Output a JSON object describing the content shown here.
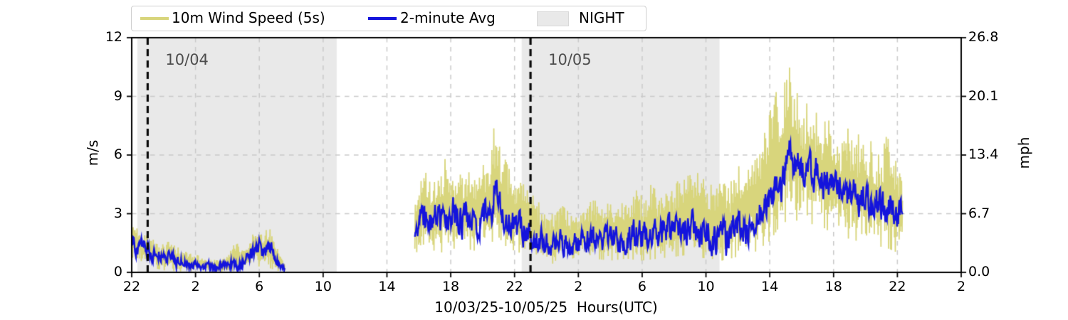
{
  "figure": {
    "background": "#ffffff"
  },
  "legend": {
    "items": [
      {
        "label": "10m Wind Speed (5s)",
        "swatch": "line",
        "color": "#d8d57c"
      },
      {
        "label": "2-minute Avg",
        "swatch": "line",
        "color": "#1414dc"
      },
      {
        "label": "NIGHT",
        "swatch": "patch",
        "color": "#e9e9e9"
      }
    ]
  },
  "chart_data": {
    "type": "line",
    "title": "",
    "xlabel": "10/03/25-10/05/25  Hours(UTC)",
    "legend_position": "top",
    "grid": true,
    "x_axis": {
      "label": "10/03/25-10/05/25  Hours(UTC)",
      "start": "10/03/25 22:00 UTC",
      "range_hours": [
        0,
        52
      ],
      "tick_hours": [
        0,
        4,
        8,
        12,
        16,
        20,
        24,
        28,
        32,
        36,
        40,
        44,
        48,
        52
      ],
      "tick_labels": [
        "22",
        "2",
        "6",
        "10",
        "14",
        "18",
        "22",
        "2",
        "6",
        "10",
        "14",
        "18",
        "22",
        "2"
      ]
    },
    "y_left": {
      "label": "m/s",
      "range": [
        0,
        12
      ],
      "tick_values": [
        0,
        3,
        6,
        9,
        12
      ],
      "tick_labels": [
        "0",
        "3",
        "6",
        "9",
        "12"
      ]
    },
    "y_right": {
      "label": "mph",
      "tick_values": [
        0,
        3,
        6,
        9,
        12
      ],
      "tick_labels": [
        "0.0",
        "6.7",
        "13.4",
        "20.1",
        "26.8"
      ]
    },
    "night_color": "#e9e9e9",
    "grid_color": "#c9c9c9",
    "night_bands_hours": [
      [
        0.35,
        12.85
      ],
      [
        24.45,
        36.85
      ]
    ],
    "day_markers": [
      {
        "hour": 1.0,
        "label": "10/04"
      },
      {
        "hour": 25.0,
        "label": "10/05"
      }
    ],
    "data_segments_hours": [
      [
        0,
        9.6
      ],
      [
        17.75,
        48.35
      ]
    ],
    "series": [
      {
        "name": "10m Wind Speed (5s)",
        "color": "#d8d57c",
        "style": "raw-envelope",
        "gust_max_keyframes": [
          [
            0,
            2.7
          ],
          [
            0.5,
            2.2
          ],
          [
            1,
            2.0
          ],
          [
            1.5,
            1.7
          ],
          [
            2,
            1.5
          ],
          [
            2.5,
            1.6
          ],
          [
            3,
            1.2
          ],
          [
            3.5,
            1.1
          ],
          [
            4,
            0.9
          ],
          [
            4.5,
            0.8
          ],
          [
            5,
            0.6
          ],
          [
            5.5,
            0.7
          ],
          [
            6,
            0.8
          ],
          [
            6.5,
            1.7
          ],
          [
            7,
            1.2
          ],
          [
            7.5,
            1.9
          ],
          [
            8,
            2.1
          ],
          [
            8.7,
            2.2
          ],
          [
            9,
            1.5
          ],
          [
            9.3,
            0.9
          ],
          [
            9.6,
            0.4
          ],
          [
            17.75,
            3.8
          ],
          [
            18.1,
            4.5
          ],
          [
            18.4,
            5.8
          ],
          [
            18.8,
            4.6
          ],
          [
            19.2,
            5.2
          ],
          [
            19.6,
            5.9
          ],
          [
            20,
            4.8
          ],
          [
            20.4,
            5.3
          ],
          [
            20.8,
            4.7
          ],
          [
            21.2,
            5.6
          ],
          [
            21.6,
            4.9
          ],
          [
            22,
            5.4
          ],
          [
            22.4,
            6.3
          ],
          [
            22.85,
            7.9
          ],
          [
            23.2,
            6.2
          ],
          [
            23.6,
            5.4
          ],
          [
            24,
            4.7
          ],
          [
            24.4,
            5.1
          ],
          [
            24.8,
            4.2
          ],
          [
            25.2,
            3.9
          ],
          [
            25.6,
            3.5
          ],
          [
            26,
            3.2
          ],
          [
            26.5,
            2.9
          ],
          [
            27,
            3.4
          ],
          [
            27.5,
            3.0
          ],
          [
            28,
            3.3
          ],
          [
            28.5,
            3.5
          ],
          [
            29,
            3.7
          ],
          [
            29.5,
            3.4
          ],
          [
            30,
            3.9
          ],
          [
            30.5,
            3.6
          ],
          [
            31,
            4.0
          ],
          [
            31.5,
            4.3
          ],
          [
            32,
            3.9
          ],
          [
            32.5,
            4.5
          ],
          [
            33,
            4.1
          ],
          [
            33.5,
            4.7
          ],
          [
            34,
            4.3
          ],
          [
            34.5,
            5.1
          ],
          [
            34.9,
            5.6
          ],
          [
            35.3,
            4.9
          ],
          [
            35.7,
            5.3
          ],
          [
            36.1,
            4.7
          ],
          [
            36.5,
            4.3
          ],
          [
            37,
            5.0
          ],
          [
            37.5,
            4.5
          ],
          [
            38,
            5.5
          ],
          [
            38.4,
            5.0
          ],
          [
            38.8,
            5.9
          ],
          [
            39.2,
            6.3
          ],
          [
            39.6,
            6.9
          ],
          [
            40,
            8.1
          ],
          [
            40.4,
            10.0
          ],
          [
            40.7,
            9.0
          ],
          [
            41,
            9.9
          ],
          [
            41.2,
            11.3
          ],
          [
            41.5,
            8.8
          ],
          [
            41.8,
            9.3
          ],
          [
            42.1,
            8.2
          ],
          [
            42.4,
            8.8
          ],
          [
            42.7,
            7.8
          ],
          [
            43,
            8.3
          ],
          [
            43.3,
            7.5
          ],
          [
            43.6,
            8.7
          ],
          [
            44,
            7.2
          ],
          [
            44.4,
            6.8
          ],
          [
            44.8,
            7.6
          ],
          [
            45.2,
            6.6
          ],
          [
            45.6,
            7.1
          ],
          [
            46,
            6.2
          ],
          [
            46.4,
            6.8
          ],
          [
            46.8,
            6.0
          ],
          [
            47.1,
            6.4
          ],
          [
            47.35,
            9.4
          ],
          [
            47.6,
            6.3
          ],
          [
            48,
            5.5
          ],
          [
            48.35,
            4.4
          ]
        ],
        "gust_min_keyframes": [
          [
            0,
            0.6
          ],
          [
            1,
            0.3
          ],
          [
            2,
            0.1
          ],
          [
            3,
            0.05
          ],
          [
            4,
            0.05
          ],
          [
            5,
            0.02
          ],
          [
            6,
            0.05
          ],
          [
            7,
            0.1
          ],
          [
            7.6,
            0.3
          ],
          [
            8.4,
            0.3
          ],
          [
            9,
            0.1
          ],
          [
            9.6,
            0.02
          ],
          [
            17.75,
            1.0
          ],
          [
            18.5,
            1.2
          ],
          [
            19.5,
            1.0
          ],
          [
            20.5,
            1.3
          ],
          [
            21.5,
            1.1
          ],
          [
            22.5,
            1.5
          ],
          [
            23,
            1.8
          ],
          [
            23.5,
            1.3
          ],
          [
            24,
            1.1
          ],
          [
            25,
            0.8
          ],
          [
            26,
            0.6
          ],
          [
            26.5,
            0.4
          ],
          [
            27,
            0.6
          ],
          [
            28,
            0.5
          ],
          [
            29,
            0.7
          ],
          [
            30,
            0.6
          ],
          [
            31,
            0.7
          ],
          [
            32,
            0.6
          ],
          [
            33,
            0.7
          ],
          [
            34,
            0.8
          ],
          [
            35,
            0.9
          ],
          [
            36,
            0.7
          ],
          [
            36.5,
            0.3
          ],
          [
            37,
            0.6
          ],
          [
            38,
            0.8
          ],
          [
            39,
            1.0
          ],
          [
            39.5,
            1.3
          ],
          [
            40,
            1.6
          ],
          [
            40.5,
            2.2
          ],
          [
            41,
            2.6
          ],
          [
            41.2,
            3.2
          ],
          [
            41.6,
            2.6
          ],
          [
            42,
            2.8
          ],
          [
            42.5,
            2.4
          ],
          [
            43,
            2.6
          ],
          [
            43.5,
            2.2
          ],
          [
            44,
            2.0
          ],
          [
            44.5,
            1.9
          ],
          [
            45,
            1.7
          ],
          [
            45.5,
            1.6
          ],
          [
            46,
            1.5
          ],
          [
            46.5,
            1.4
          ],
          [
            47,
            1.3
          ],
          [
            47.5,
            1.2
          ],
          [
            48,
            1.0
          ],
          [
            48.35,
            1.2
          ]
        ]
      },
      {
        "name": "2-minute Avg",
        "color": "#1414dc",
        "style": "average",
        "keyframes": [
          [
            0,
            1.6
          ],
          [
            0.3,
            1.2
          ],
          [
            0.6,
            1.4
          ],
          [
            1,
            1.1
          ],
          [
            1.3,
            0.8
          ],
          [
            1.6,
            1.0
          ],
          [
            2,
            0.7
          ],
          [
            2.4,
            0.9
          ],
          [
            2.8,
            0.5
          ],
          [
            3.2,
            0.6
          ],
          [
            3.6,
            0.3
          ],
          [
            4,
            0.5
          ],
          [
            4.4,
            0.25
          ],
          [
            4.8,
            0.4
          ],
          [
            5.2,
            0.2
          ],
          [
            5.6,
            0.35
          ],
          [
            6,
            0.3
          ],
          [
            6.4,
            0.5
          ],
          [
            6.8,
            0.4
          ],
          [
            7.2,
            0.7
          ],
          [
            7.6,
            1.1
          ],
          [
            8,
            1.3
          ],
          [
            8.4,
            1.0
          ],
          [
            8.7,
            1.4
          ],
          [
            9,
            0.8
          ],
          [
            9.3,
            0.4
          ],
          [
            9.6,
            0.15
          ],
          [
            17.75,
            2.3
          ],
          [
            18.2,
            2.7
          ],
          [
            18.7,
            2.5
          ],
          [
            19.2,
            2.9
          ],
          [
            19.7,
            2.6
          ],
          [
            20.2,
            3.0
          ],
          [
            20.7,
            2.6
          ],
          [
            21.2,
            2.8
          ],
          [
            21.7,
            2.5
          ],
          [
            22.2,
            2.9
          ],
          [
            22.6,
            3.4
          ],
          [
            22.85,
            5.0
          ],
          [
            23.1,
            3.2
          ],
          [
            23.5,
            2.7
          ],
          [
            24,
            2.4
          ],
          [
            24.5,
            2.1
          ],
          [
            25,
            1.9
          ],
          [
            25.5,
            1.7
          ],
          [
            26,
            1.5
          ],
          [
            26.5,
            1.3
          ],
          [
            27,
            1.6
          ],
          [
            27.5,
            1.3
          ],
          [
            28,
            1.5
          ],
          [
            28.5,
            1.6
          ],
          [
            29,
            1.8
          ],
          [
            29.5,
            1.6
          ],
          [
            30,
            1.9
          ],
          [
            30.5,
            1.7
          ],
          [
            31,
            1.8
          ],
          [
            31.5,
            2.0
          ],
          [
            32,
            1.8
          ],
          [
            32.5,
            2.1
          ],
          [
            33,
            1.9
          ],
          [
            33.5,
            2.0
          ],
          [
            34,
            2.2
          ],
          [
            34.5,
            2.0
          ],
          [
            35,
            2.3
          ],
          [
            35.5,
            2.1
          ],
          [
            36,
            2.2
          ],
          [
            36.5,
            1.6
          ],
          [
            37,
            2.1
          ],
          [
            37.3,
            1.5
          ],
          [
            37.7,
            2.2
          ],
          [
            38,
            2.4
          ],
          [
            38.5,
            2.2
          ],
          [
            39,
            2.7
          ],
          [
            39.5,
            3.1
          ],
          [
            40,
            3.6
          ],
          [
            40.3,
            4.4
          ],
          [
            40.6,
            4.0
          ],
          [
            40.9,
            4.8
          ],
          [
            41.2,
            7.0
          ],
          [
            41.5,
            5.4
          ],
          [
            41.8,
            5.8
          ],
          [
            42.1,
            5.0
          ],
          [
            42.4,
            5.6
          ],
          [
            42.7,
            4.8
          ],
          [
            43,
            5.2
          ],
          [
            43.3,
            4.5
          ],
          [
            43.6,
            4.8
          ],
          [
            44,
            4.2
          ],
          [
            44.4,
            4.5
          ],
          [
            44.8,
            3.9
          ],
          [
            45.2,
            4.2
          ],
          [
            45.6,
            3.6
          ],
          [
            46,
            3.9
          ],
          [
            46.4,
            3.4
          ],
          [
            46.8,
            3.7
          ],
          [
            47.2,
            3.2
          ],
          [
            47.6,
            3.5
          ],
          [
            48,
            2.6
          ],
          [
            48.2,
            3.0
          ],
          [
            48.35,
            3.6
          ]
        ]
      }
    ],
    "noise": {
      "seed": 42,
      "raw_step_hours": 0.03,
      "avg_step_hours": 0.0333,
      "avg_amplitude_factor": 0.4
    }
  }
}
